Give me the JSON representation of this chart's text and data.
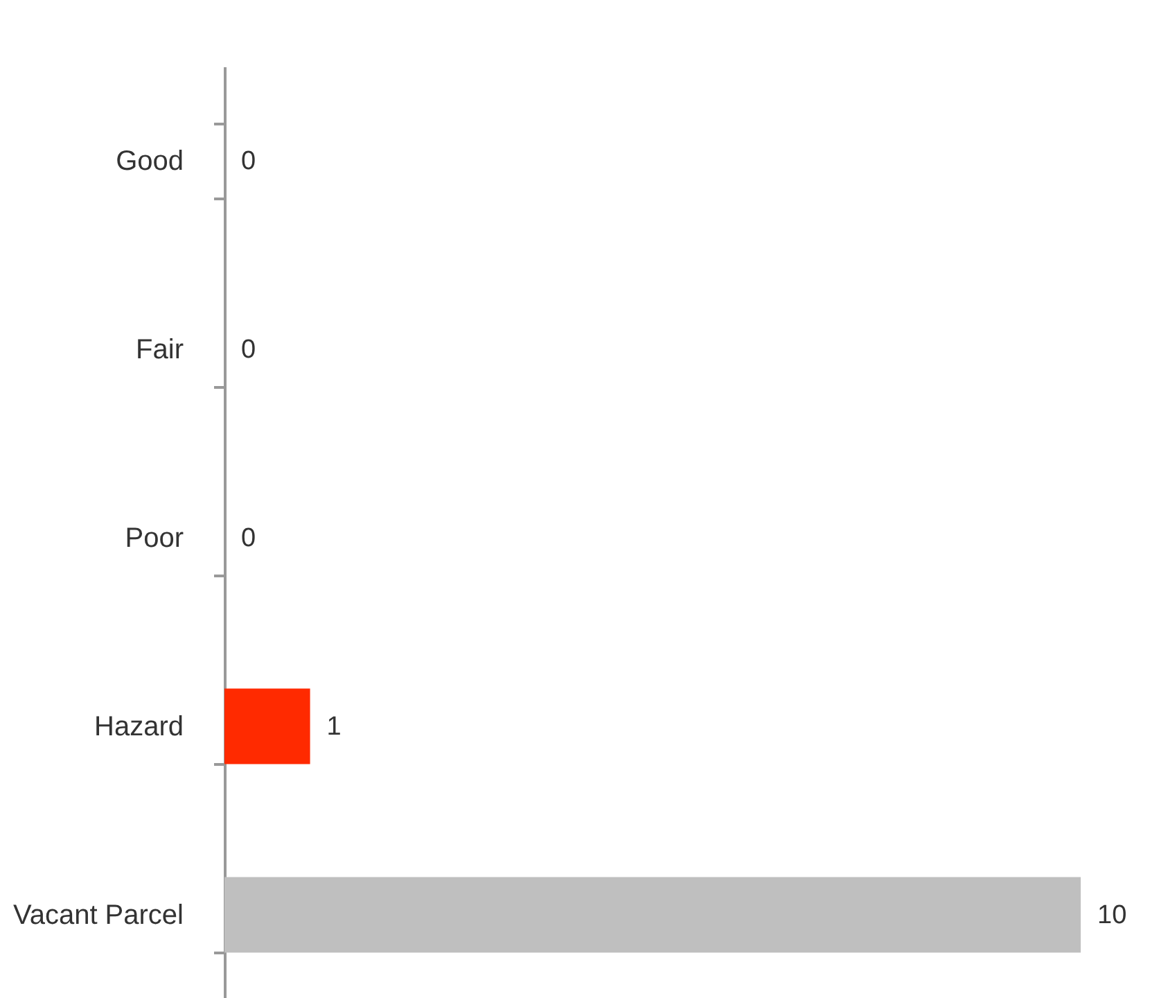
{
  "chart_data": {
    "type": "bar",
    "orientation": "horizontal",
    "categories": [
      "Good",
      "Fair",
      "Poor",
      "Hazard",
      "Vacant Parcel"
    ],
    "values": [
      0,
      0,
      0,
      1,
      10
    ],
    "colors": [
      "#bfbfbf",
      "#bfbfbf",
      "#bfbfbf",
      "#ff2a00",
      "#bfbfbf"
    ],
    "data_labels": true
  }
}
